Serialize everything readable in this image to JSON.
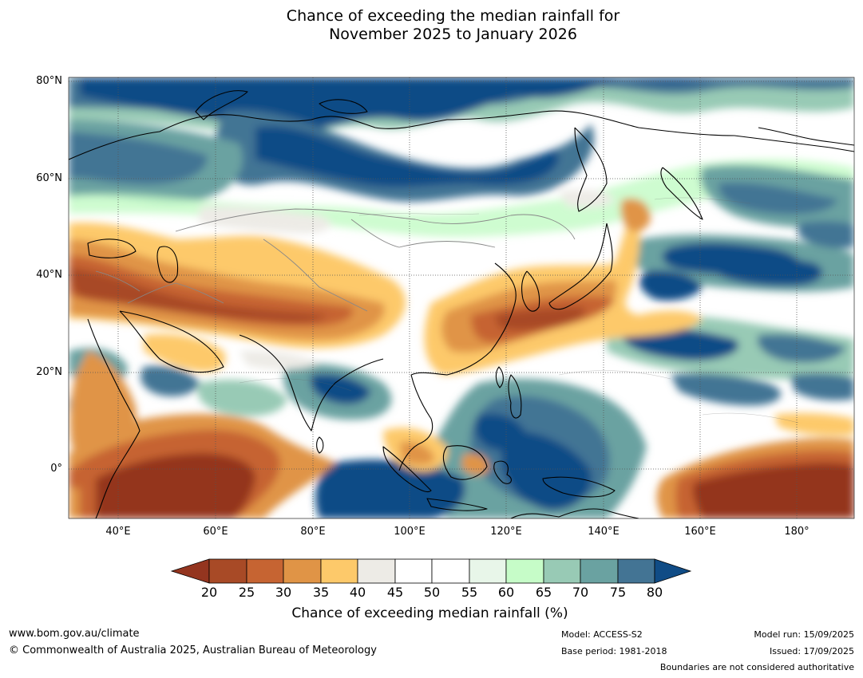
{
  "title": {
    "line1": "Chance of exceeding the median rainfall for",
    "line2": "November 2025 to January 2026"
  },
  "map": {
    "lat_labels": [
      "80°N",
      "60°N",
      "40°N",
      "20°N",
      "0°"
    ],
    "lon_labels": [
      "40°E",
      "60°E",
      "80°E",
      "100°E",
      "120°E",
      "140°E",
      "160°E",
      "180°"
    ],
    "background_color": "#ffffff"
  },
  "colorbar": {
    "ticks": [
      "20",
      "25",
      "30",
      "35",
      "40",
      "45",
      "50",
      "55",
      "60",
      "65",
      "70",
      "75",
      "80"
    ],
    "colors": {
      "below_20": "#94351f",
      "c20_25": "#a84a26",
      "c25_30": "#c66432",
      "c30_35": "#e09446",
      "c35_40": "#fdc96a",
      "c40_45": "#edebe6",
      "c45_50": "#ffffff",
      "c50_55": "#ffffff",
      "c55_60": "#e8f6e9",
      "c60_65": "#c6fcc8",
      "c65_70": "#98cab5",
      "c70_75": "#6aa2a1",
      "c75_80": "#437494",
      "above_80": "#104c86"
    },
    "label": "Chance of exceeding median rainfall (%)"
  },
  "footer": {
    "website": "www.bom.gov.au/climate",
    "copyright": "© Commonwealth of Australia 2025, Australian Bureau of Meteorology",
    "model": "Model: ACCESS-S2",
    "base_period": "Base period: 1981-2018",
    "model_run": "Model run: 15/09/2025",
    "issued": "Issued: 17/09/2025",
    "disclaimer": "Boundaries are not considered authoritative"
  }
}
